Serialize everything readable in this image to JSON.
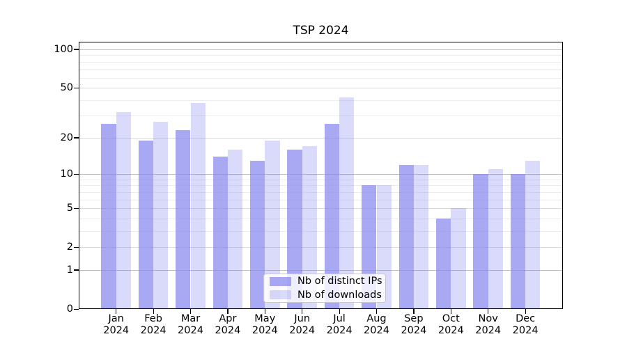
{
  "chart_data": {
    "type": "bar",
    "title": "TSP 2024",
    "x_months": [
      "Jan",
      "Feb",
      "Mar",
      "Apr",
      "May",
      "Jun",
      "Jul",
      "Aug",
      "Sep",
      "Oct",
      "Nov",
      "Dec"
    ],
    "x_year": "2024",
    "series": [
      {
        "name": "Nb of distinct IPs",
        "values": [
          26,
          19,
          23,
          14,
          13,
          16,
          26,
          8,
          12,
          4,
          10,
          10
        ]
      },
      {
        "name": "Nb of downloads",
        "values": [
          32,
          27,
          38,
          16,
          19,
          17,
          42,
          8,
          12,
          5,
          11,
          13
        ]
      }
    ],
    "yscale": "log(1+x)",
    "ytick_labels": [
      0,
      1,
      2,
      5,
      10,
      20,
      50,
      100
    ],
    "minor_gridlines": [
      3,
      4,
      6,
      7,
      8,
      9,
      30,
      40,
      60,
      70,
      80,
      90
    ],
    "ylim": [
      0,
      115
    ],
    "grid": true,
    "legend_position": "lower center"
  },
  "colors": {
    "bar_ips": "rgba(134,134,238,0.72)",
    "bar_downloads": "rgba(134,134,238,0.30)",
    "gridline_decade": "#bdbdbd",
    "gridline_labeled": "#d8d8d8",
    "gridline_minor": "#ececec",
    "axis": "#000000",
    "background": "#ffffff"
  }
}
